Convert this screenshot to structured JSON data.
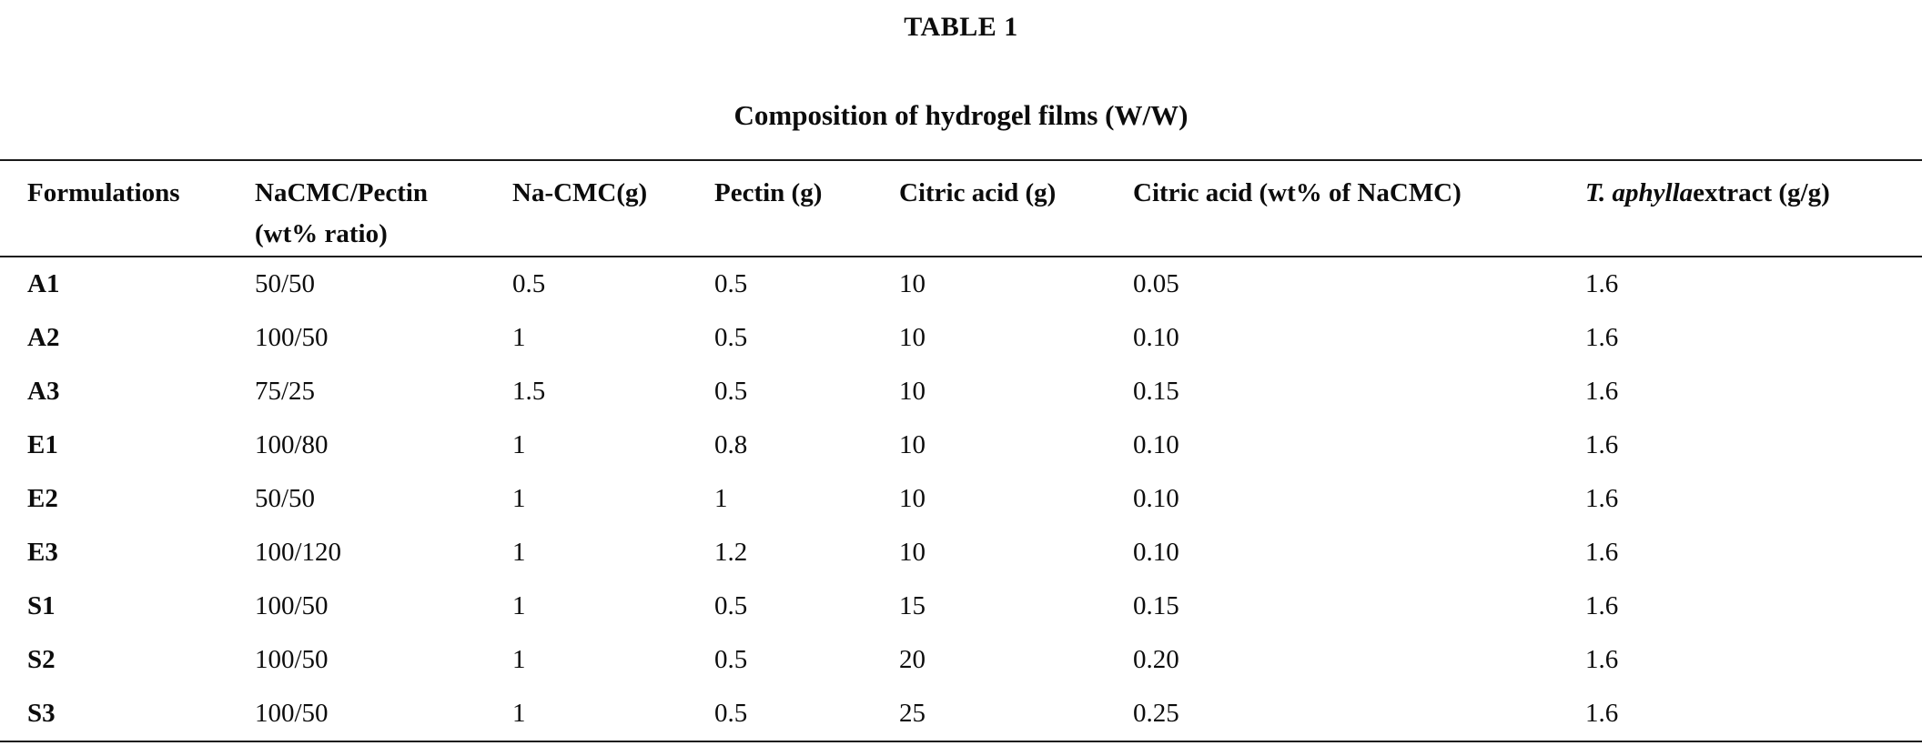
{
  "page": {
    "table_label": "TABLE 1",
    "caption": "Composition of hydrogel films (W/W)"
  },
  "table": {
    "headers": {
      "formulations": "Formulations",
      "nacmc_pectin_ratio": "NaCMC/Pectin\n(wt% ratio)",
      "nacmc_g": "Na-CMC(g)",
      "pectin_g": "Pectin (g)",
      "citric_acid_g": "Citric acid (g)",
      "citric_acid_wt": "Citric acid (wt% of NaCMC)",
      "extract_italic": "T. aphylla",
      "extract_rest": "extract (g/g)"
    },
    "rows": [
      {
        "formulation": "A1",
        "values": [
          "50/50",
          "0.5",
          "0.5",
          "10",
          "0.05",
          "1.6"
        ]
      },
      {
        "formulation": "A2",
        "values": [
          "100/50",
          "1",
          "0.5",
          "10",
          "0.10",
          "1.6"
        ]
      },
      {
        "formulation": "A3",
        "values": [
          "75/25",
          "1.5",
          "0.5",
          "10",
          "0.15",
          "1.6"
        ]
      },
      {
        "formulation": "E1",
        "values": [
          "100/80",
          "1",
          "0.8",
          "10",
          "0.10",
          "1.6"
        ]
      },
      {
        "formulation": "E2",
        "values": [
          "50/50",
          "1",
          "1",
          "10",
          "0.10",
          "1.6"
        ]
      },
      {
        "formulation": "E3",
        "values": [
          "100/120",
          "1",
          "1.2",
          "10",
          "0.10",
          "1.6"
        ]
      },
      {
        "formulation": "S1",
        "values": [
          "100/50",
          "1",
          "0.5",
          "15",
          "0.15",
          "1.6"
        ]
      },
      {
        "formulation": "S2",
        "values": [
          "100/50",
          "1",
          "0.5",
          "20",
          "0.20",
          "1.6"
        ]
      },
      {
        "formulation": "S3",
        "values": [
          "100/50",
          "1",
          "0.5",
          "25",
          "0.25",
          "1.6"
        ]
      }
    ]
  }
}
